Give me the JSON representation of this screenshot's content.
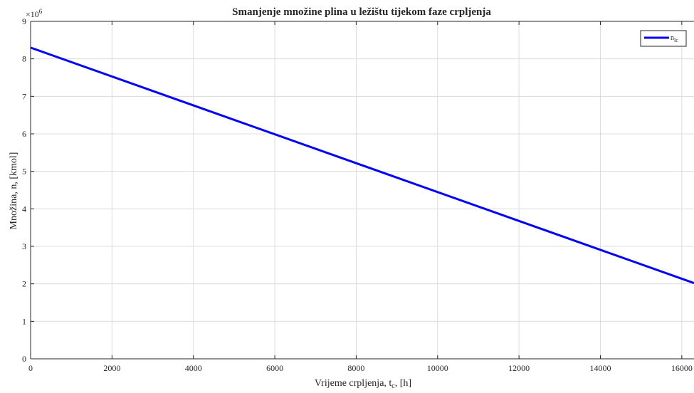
{
  "chart_data": {
    "type": "line",
    "title": "Smanjenje množine plina u ležištu tijekom faze crpljenja",
    "xlabel": {
      "main": "Vrijeme crpljenja, t",
      "sub": "c",
      "unit": ", [h]"
    },
    "ylabel": "Množina, n, [kmol]",
    "y_exponent": {
      "base": "×10",
      "power": "6"
    },
    "xlim": [
      0,
      16300
    ],
    "ylim": [
      0,
      9
    ],
    "xticks": [
      0,
      2000,
      4000,
      6000,
      8000,
      10000,
      12000,
      14000,
      16000
    ],
    "yticks": [
      0,
      1,
      2,
      3,
      4,
      5,
      6,
      7,
      8,
      9
    ],
    "grid": true,
    "legend_position": "top-right",
    "series": [
      {
        "name": "n",
        "name_sub": "lc",
        "color": "#0000ff",
        "x": [
          0,
          16300
        ],
        "y": [
          8.3,
          2.02
        ]
      }
    ]
  }
}
